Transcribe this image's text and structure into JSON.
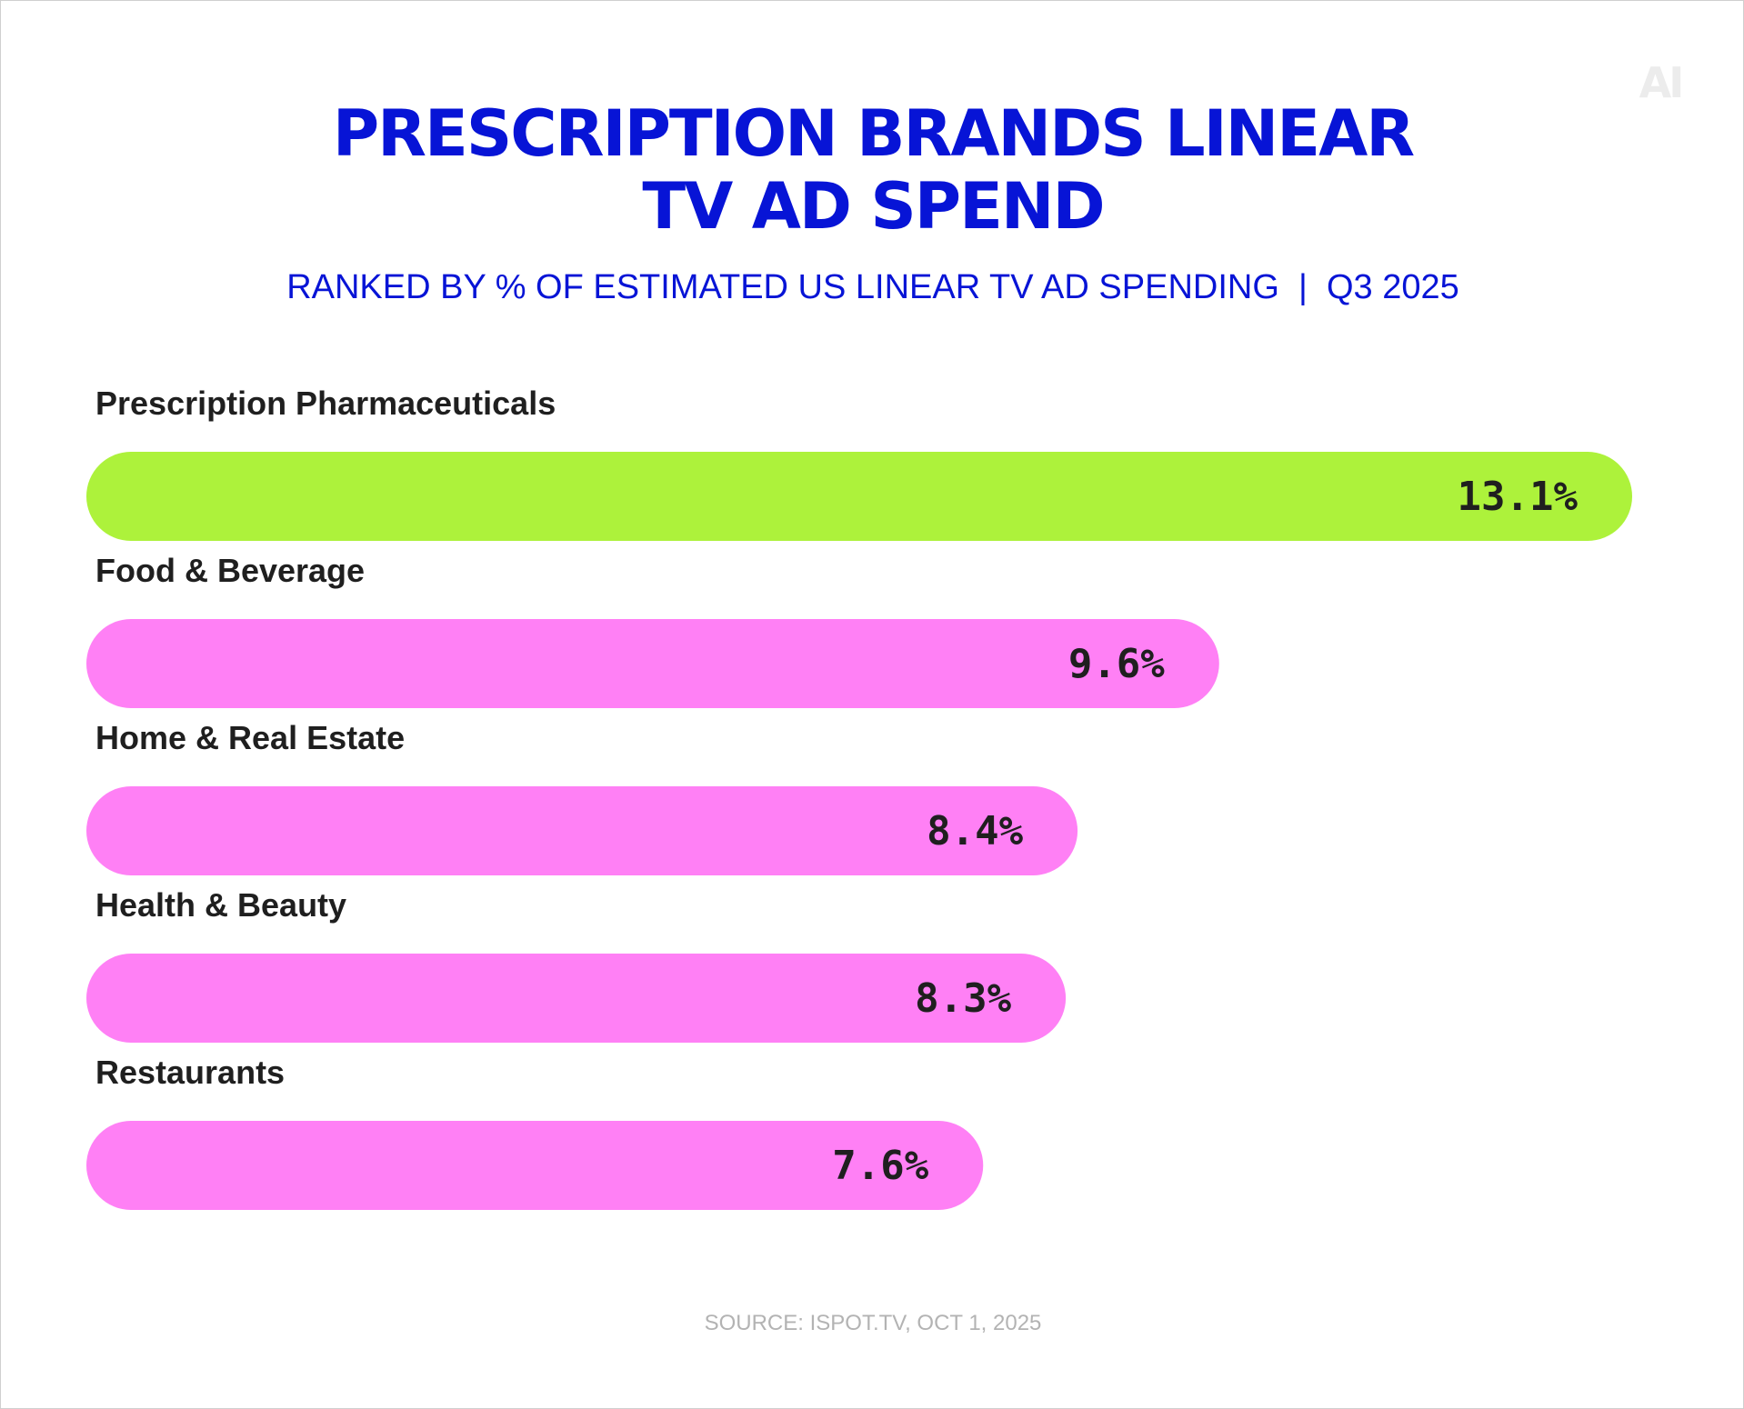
{
  "logo": {
    "text": "AI"
  },
  "title_lines": [
    "PRESCRIPTION BRANDS LINEAR",
    "TV AD SPEND"
  ],
  "subtitle": "RANKED BY % OF ESTIMATED US LINEAR TV AD SPENDING  |  Q3 2025",
  "source": "SOURCE: ISPOT.TV, OCT 1, 2025",
  "colors": {
    "highlight": "#adf23b",
    "bar": "#ff80f5",
    "title": "#0714d6",
    "label": "#1f1f1f",
    "value": "#1f1f1f",
    "source": "#b3b3b3"
  },
  "chart_data": {
    "type": "bar",
    "orientation": "horizontal",
    "title": "PRESCRIPTION BRANDS LINEAR TV AD SPEND",
    "subtitle": "RANKED BY % OF ESTIMATED US LINEAR TV AD SPENDING | Q3 2025",
    "categories": [
      "Prescription Pharmaceuticals",
      "Food & Beverage",
      "Home & Real Estate",
      "Health & Beauty",
      "Restaurants"
    ],
    "values": [
      13.1,
      9.6,
      8.4,
      8.3,
      7.6
    ],
    "value_labels": [
      "13.1%",
      "9.6%",
      "8.4%",
      "8.3%",
      "7.6%"
    ],
    "highlight_index": 0,
    "xlabel": "",
    "ylabel": "",
    "grid": false,
    "legend": "none"
  }
}
